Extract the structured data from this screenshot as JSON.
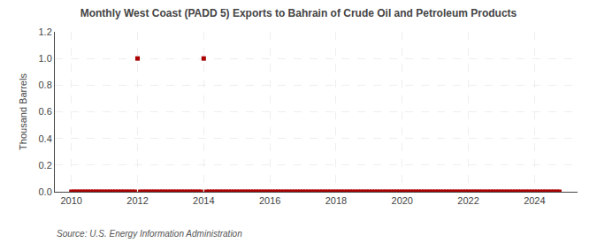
{
  "chart_data": {
    "type": "scatter",
    "title": "Monthly West Coast (PADD 5) Exports to Bahrain of Crude Oil and Petroleum Products",
    "ylabel": "Thousand Barrels",
    "source": "Source: U.S. Energy Information Administration",
    "color": "#aa0000",
    "marker": "square",
    "grid": true,
    "xlim": [
      2009.5,
      2025.3
    ],
    "xticks": [
      2010,
      2012,
      2014,
      2016,
      2018,
      2020,
      2022,
      2024
    ],
    "ylim": [
      0,
      1.2
    ],
    "yticks": [
      {
        "value": 0.0,
        "label": "0.0"
      },
      0.2,
      0.4,
      0.6,
      0.8,
      {
        "value": 1.0,
        "label": "1.0"
      },
      1.2
    ],
    "x": [
      2010.0,
      2010.083,
      2010.167,
      2010.25,
      2010.333,
      2010.417,
      2010.5,
      2010.583,
      2010.667,
      2010.75,
      2010.833,
      2010.917,
      2011.0,
      2011.083,
      2011.167,
      2011.25,
      2011.333,
      2011.417,
      2011.5,
      2011.583,
      2011.667,
      2011.75,
      2011.833,
      2011.917,
      2012.0,
      2012.083,
      2012.167,
      2012.25,
      2012.333,
      2012.417,
      2012.5,
      2012.583,
      2012.667,
      2012.75,
      2012.833,
      2012.917,
      2013.0,
      2013.083,
      2013.167,
      2013.25,
      2013.333,
      2013.417,
      2013.5,
      2013.583,
      2013.667,
      2013.75,
      2013.833,
      2013.917,
      2014.0,
      2014.083,
      2014.167,
      2014.25,
      2014.333,
      2014.417,
      2014.5,
      2014.583,
      2014.667,
      2014.75,
      2014.833,
      2014.917,
      2015.0,
      2015.083,
      2015.167,
      2015.25,
      2015.333,
      2015.417,
      2015.5,
      2015.583,
      2015.667,
      2015.75,
      2015.833,
      2015.917,
      2016.0,
      2016.083,
      2016.167,
      2016.25,
      2016.333,
      2016.417,
      2016.5,
      2016.583,
      2016.667,
      2016.75,
      2016.833,
      2016.917,
      2017.0,
      2017.083,
      2017.167,
      2017.25,
      2017.333,
      2017.417,
      2017.5,
      2017.583,
      2017.667,
      2017.75,
      2017.833,
      2017.917,
      2018.0,
      2018.083,
      2018.167,
      2018.25,
      2018.333,
      2018.417,
      2018.5,
      2018.583,
      2018.667,
      2018.75,
      2018.833,
      2018.917,
      2019.0,
      2019.083,
      2019.167,
      2019.25,
      2019.333,
      2019.417,
      2019.5,
      2019.583,
      2019.667,
      2019.75,
      2019.833,
      2019.917,
      2020.0,
      2020.083,
      2020.167,
      2020.25,
      2020.333,
      2020.417,
      2020.5,
      2020.583,
      2020.667,
      2020.75,
      2020.833,
      2020.917,
      2021.0,
      2021.083,
      2021.167,
      2021.25,
      2021.333,
      2021.417,
      2021.5,
      2021.583,
      2021.667,
      2021.75,
      2021.833,
      2021.917,
      2022.0,
      2022.083,
      2022.167,
      2022.25,
      2022.333,
      2022.417,
      2022.5,
      2022.583,
      2022.667,
      2022.75,
      2022.833,
      2022.917,
      2023.0,
      2023.083,
      2023.167,
      2023.25,
      2023.333,
      2023.417,
      2023.5,
      2023.583,
      2023.667,
      2023.75,
      2023.833,
      2023.917,
      2024.0,
      2024.083,
      2024.167,
      2024.25,
      2024.333,
      2024.417,
      2024.5,
      2024.583,
      2024.667,
      2024.75
    ],
    "values": [
      0.0,
      0.0,
      0.0,
      0.0,
      0.0,
      0.0,
      0.0,
      0.0,
      0.0,
      0.0,
      0.0,
      0.0,
      0.0,
      0.0,
      0.0,
      0.0,
      0.0,
      0.0,
      0.0,
      0.0,
      0.0,
      0.0,
      0.0,
      0.0,
      1.0,
      0.0,
      0.0,
      0.0,
      0.0,
      0.0,
      0.0,
      0.0,
      0.0,
      0.0,
      0.0,
      0.0,
      0.0,
      0.0,
      0.0,
      0.0,
      0.0,
      0.0,
      0.0,
      0.0,
      0.0,
      0.0,
      0.0,
      0.0,
      1.0,
      0.0,
      0.0,
      0.0,
      0.0,
      0.0,
      0.0,
      0.0,
      0.0,
      0.0,
      0.0,
      0.0,
      0.0,
      0.0,
      0.0,
      0.0,
      0.0,
      0.0,
      0.0,
      0.0,
      0.0,
      0.0,
      0.0,
      0.0,
      0.0,
      0.0,
      0.0,
      0.0,
      0.0,
      0.0,
      0.0,
      0.0,
      0.0,
      0.0,
      0.0,
      0.0,
      0.0,
      0.0,
      0.0,
      0.0,
      0.0,
      0.0,
      0.0,
      0.0,
      0.0,
      0.0,
      0.0,
      0.0,
      0.0,
      0.0,
      0.0,
      0.0,
      0.0,
      0.0,
      0.0,
      0.0,
      0.0,
      0.0,
      0.0,
      0.0,
      0.0,
      0.0,
      0.0,
      0.0,
      0.0,
      0.0,
      0.0,
      0.0,
      0.0,
      0.0,
      0.0,
      0.0,
      0.0,
      0.0,
      0.0,
      0.0,
      0.0,
      0.0,
      0.0,
      0.0,
      0.0,
      0.0,
      0.0,
      0.0,
      0.0,
      0.0,
      0.0,
      0.0,
      0.0,
      0.0,
      0.0,
      0.0,
      0.0,
      0.0,
      0.0,
      0.0,
      0.0,
      0.0,
      0.0,
      0.0,
      0.0,
      0.0,
      0.0,
      0.0,
      0.0,
      0.0,
      0.0,
      0.0,
      0.0,
      0.0,
      0.0,
      0.0,
      0.0,
      0.0,
      0.0,
      0.0,
      0.0,
      0.0,
      0.0,
      0.0,
      0.0,
      0.0,
      0.0,
      0.0,
      0.0,
      0.0,
      0.0,
      0.0,
      0.0,
      0.0
    ]
  }
}
